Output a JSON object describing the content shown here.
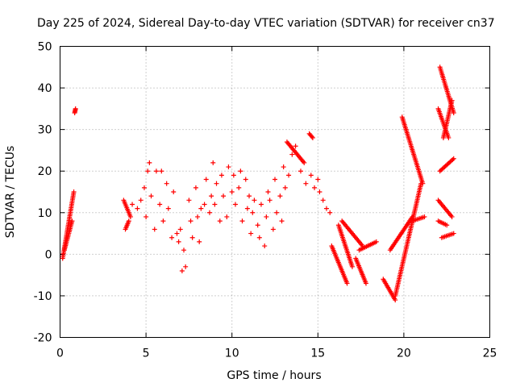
{
  "chart_data": {
    "type": "scatter",
    "title": "Day 225 of 2024, Sidereal Day-to-day VTEC variation (SDTVAR) for receiver cn37",
    "xlabel": "GPS time / hours",
    "ylabel": "SDTVAR / TECUs",
    "xlim": [
      0,
      25
    ],
    "ylim": [
      -20,
      50
    ],
    "grid": true,
    "x_ticks": [
      0,
      5,
      10,
      15,
      20,
      25
    ],
    "y_ticks": [
      -20,
      -10,
      0,
      10,
      20,
      30,
      40,
      50
    ],
    "x_tick_labels": [
      "0",
      "5",
      "10",
      "15",
      "20",
      "25"
    ],
    "y_tick_labels": [
      "-20",
      "-10",
      "0",
      "10",
      "20",
      "30",
      "40",
      "50"
    ],
    "marker": "+",
    "marker_color": "#ff0000",
    "series": [
      {
        "name": "SDTVAR",
        "segments": [
          {
            "x": [
              0.15,
              0.8
            ],
            "y": [
              -1,
              15
            ]
          },
          {
            "x": [
              0.25,
              0.7
            ],
            "y": [
              1,
              8
            ]
          },
          {
            "x": [
              0.85,
              0.9
            ],
            "y": [
              34,
              35
            ]
          },
          {
            "x": [
              3.7,
              4.1
            ],
            "y": [
              13,
              9
            ]
          },
          {
            "x": [
              3.8,
              4.0
            ],
            "y": [
              6,
              8
            ]
          },
          {
            "x": [
              13.2,
              14.2
            ],
            "y": [
              27,
              22
            ]
          },
          {
            "x": [
              14.5,
              14.7
            ],
            "y": [
              29,
              28
            ]
          },
          {
            "x": [
              15.8,
              16.7
            ],
            "y": [
              2,
              -7
            ]
          },
          {
            "x": [
              16.2,
              17.0
            ],
            "y": [
              7,
              -3
            ]
          },
          {
            "x": [
              16.4,
              17.6
            ],
            "y": [
              8,
              2
            ]
          },
          {
            "x": [
              17.2,
              17.8
            ],
            "y": [
              -1,
              -7
            ]
          },
          {
            "x": [
              17.4,
              18.4
            ],
            "y": [
              1,
              3
            ]
          },
          {
            "x": [
              18.8,
              19.5
            ],
            "y": [
              -6,
              -11
            ]
          },
          {
            "x": [
              19.2,
              20.5
            ],
            "y": [
              1,
              9
            ]
          },
          {
            "x": [
              19.5,
              21.0
            ],
            "y": [
              -10,
              17
            ]
          },
          {
            "x": [
              19.9,
              21.1
            ],
            "y": [
              33,
              17
            ]
          },
          {
            "x": [
              20.5,
              21.2
            ],
            "y": [
              8,
              9
            ]
          },
          {
            "x": [
              22.0,
              22.6
            ],
            "y": [
              35,
              28
            ]
          },
          {
            "x": [
              22.1,
              22.9
            ],
            "y": [
              45,
              34
            ]
          },
          {
            "x": [
              22.0,
              22.8
            ],
            "y": [
              13,
              9
            ]
          },
          {
            "x": [
              22.1,
              22.9
            ],
            "y": [
              20,
              23
            ]
          },
          {
            "x": [
              22.3,
              22.8
            ],
            "y": [
              28,
              37
            ]
          },
          {
            "x": [
              22.0,
              22.5
            ],
            "y": [
              8,
              7
            ]
          },
          {
            "x": [
              22.2,
              22.9
            ],
            "y": [
              4,
              5
            ]
          }
        ],
        "scatter_x": [
          4.2,
          4.5,
          4.7,
          4.9,
          5.0,
          5.1,
          5.2,
          5.3,
          5.5,
          5.6,
          5.8,
          5.9,
          6.0,
          6.2,
          6.3,
          6.5,
          6.6,
          6.8,
          6.9,
          7.0,
          7.1,
          7.2,
          7.3,
          7.5,
          7.6,
          7.7,
          7.9,
          8.0,
          8.1,
          8.2,
          8.4,
          8.5,
          8.7,
          8.8,
          8.9,
          9.0,
          9.1,
          9.3,
          9.4,
          9.5,
          9.7,
          9.8,
          10.0,
          10.1,
          10.2,
          10.4,
          10.5,
          10.6,
          10.8,
          10.9,
          11.0,
          11.1,
          11.2,
          11.3,
          11.5,
          11.6,
          11.7,
          11.9,
          12.0,
          12.1,
          12.2,
          12.4,
          12.5,
          12.6,
          12.8,
          12.9,
          13.0,
          13.1,
          13.3,
          13.5,
          13.7,
          14.0,
          14.3,
          14.6,
          14.8,
          15.0,
          15.1,
          15.3,
          15.5,
          15.7
        ],
        "scatter_y": [
          12,
          11,
          13,
          16,
          9,
          20,
          22,
          14,
          6,
          20,
          12,
          20,
          8,
          17,
          11,
          4,
          15,
          5,
          3,
          6,
          -4,
          1,
          -3,
          13,
          8,
          4,
          16,
          9,
          3,
          11,
          12,
          18,
          10,
          14,
          22,
          12,
          17,
          8,
          19,
          14,
          9,
          21,
          15,
          19,
          12,
          16,
          20,
          8,
          18,
          11,
          14,
          5,
          10,
          13,
          7,
          4,
          12,
          2,
          9,
          15,
          13,
          6,
          18,
          10,
          14,
          8,
          21,
          16,
          19,
          24,
          26,
          20,
          17,
          19,
          16,
          18,
          15,
          13,
          11,
          10
        ]
      }
    ]
  }
}
